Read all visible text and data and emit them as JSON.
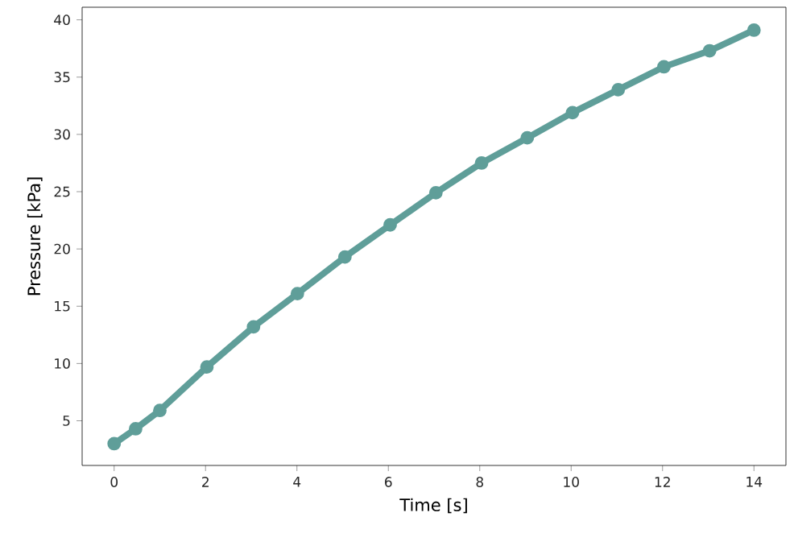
{
  "chart_data": {
    "type": "line",
    "xlabel": "Time [s]",
    "ylabel": "Pressure [kPa]",
    "x": [
      0,
      0.47,
      1.0,
      2.03,
      3.05,
      4.01,
      5.05,
      6.04,
      7.04,
      8.04,
      9.04,
      10.03,
      11.03,
      12.03,
      13.03,
      14
    ],
    "series": [
      {
        "color": "#5f9e99",
        "values": [
          3.0,
          4.3,
          5.9,
          9.7,
          13.2,
          16.1,
          19.3,
          22.1,
          24.9,
          27.5,
          29.7,
          31.9,
          33.9,
          35.9,
          37.3,
          39.1
        ]
      }
    ],
    "marker": "circle",
    "line_style": "solid",
    "grid": false,
    "xlim": [
      -0.7,
      14.7
    ],
    "ylim": [
      1.1,
      41.1
    ],
    "xticks": [
      0,
      2,
      4,
      6,
      8,
      10,
      12,
      14
    ],
    "yticks": [
      5,
      10,
      15,
      20,
      25,
      30,
      35,
      40
    ]
  }
}
